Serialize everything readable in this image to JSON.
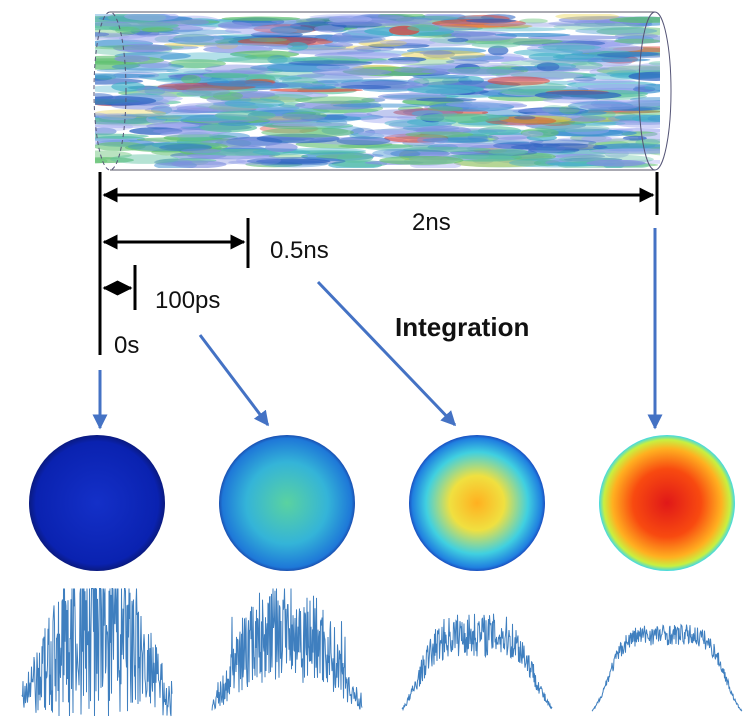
{
  "timeline": {
    "total": "2ns",
    "mid": "0.5ns",
    "short": "100ps",
    "start": "0s"
  },
  "annotation": "Integration"
}
